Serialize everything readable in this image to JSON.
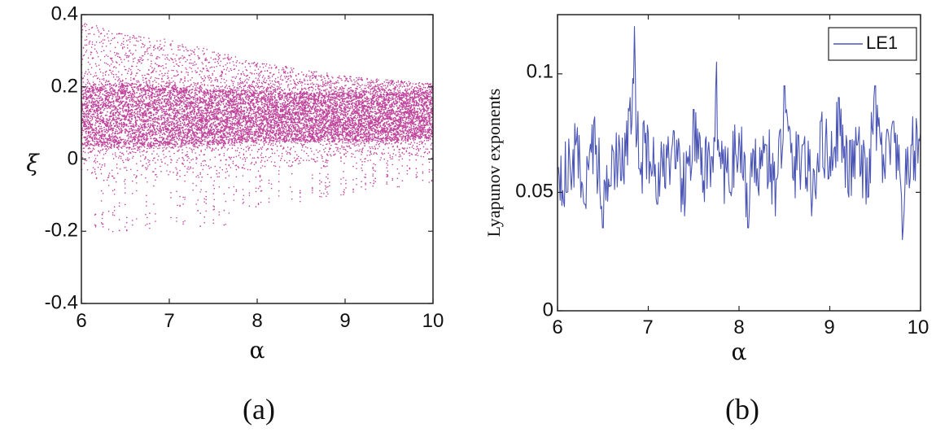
{
  "chart_data": [
    {
      "type": "scatter",
      "title": "",
      "panel_label": "(a)",
      "xlabel": "α",
      "ylabel": "ξ",
      "xlim": [
        6,
        10
      ],
      "ylim": [
        -0.4,
        0.4
      ],
      "xticks": [
        6,
        7,
        8,
        9,
        10
      ],
      "yticks": [
        -0.4,
        -0.2,
        0,
        0.2,
        0.4
      ],
      "xtick_labels": [
        "6",
        "7",
        "8",
        "9",
        "10"
      ],
      "ytick_labels": [
        "-0.4",
        "-0.2",
        "0",
        "0.2",
        "0.4"
      ],
      "grid": false,
      "color": "#c0449c",
      "description": "bifurcation-like point cloud, dense band roughly 0.0 to 0.2 across alpha 6 to 10",
      "envelope": {
        "alpha": [
          6.0,
          6.5,
          7.0,
          7.5,
          8.0,
          8.5,
          9.0,
          9.5,
          10.0
        ],
        "upper": [
          0.38,
          0.35,
          0.33,
          0.3,
          0.27,
          0.25,
          0.23,
          0.22,
          0.21
        ],
        "dense_upper": [
          0.2,
          0.21,
          0.2,
          0.19,
          0.19,
          0.18,
          0.18,
          0.18,
          0.18
        ],
        "dense_lower": [
          0.04,
          0.03,
          0.04,
          0.04,
          0.05,
          0.05,
          0.05,
          0.05,
          0.06
        ],
        "lower": [
          -0.2,
          -0.21,
          -0.18,
          -0.2,
          -0.14,
          -0.12,
          -0.1,
          -0.08,
          -0.07
        ]
      }
    },
    {
      "type": "line",
      "title": "",
      "panel_label": "(b)",
      "xlabel": "α",
      "ylabel": "Lyapunov exponents",
      "xlim": [
        6,
        10
      ],
      "ylim": [
        0,
        0.125
      ],
      "xticks": [
        6,
        7,
        8,
        9,
        10
      ],
      "yticks": [
        0,
        0.05,
        0.1
      ],
      "xtick_labels": [
        "6",
        "7",
        "8",
        "9",
        "10"
      ],
      "ytick_labels": [
        "0",
        "0.05",
        "0.1"
      ],
      "grid": false,
      "legend": "top-right",
      "series": [
        {
          "name": "LE1",
          "color": "#4a55b5",
          "x": [
            6.0,
            6.1,
            6.2,
            6.3,
            6.4,
            6.5,
            6.6,
            6.7,
            6.8,
            6.85,
            6.9,
            7.0,
            7.1,
            7.2,
            7.3,
            7.4,
            7.5,
            7.6,
            7.7,
            7.75,
            7.8,
            7.9,
            8.0,
            8.1,
            8.2,
            8.3,
            8.4,
            8.5,
            8.6,
            8.7,
            8.8,
            8.9,
            9.0,
            9.1,
            9.2,
            9.3,
            9.4,
            9.5,
            9.6,
            9.7,
            9.8,
            9.9,
            10.0
          ],
          "values": [
            0.06,
            0.05,
            0.07,
            0.045,
            0.08,
            0.035,
            0.07,
            0.055,
            0.09,
            0.12,
            0.06,
            0.075,
            0.045,
            0.07,
            0.06,
            0.04,
            0.085,
            0.05,
            0.065,
            0.105,
            0.06,
            0.05,
            0.075,
            0.035,
            0.06,
            0.07,
            0.04,
            0.095,
            0.055,
            0.07,
            0.04,
            0.08,
            0.065,
            0.09,
            0.05,
            0.07,
            0.045,
            0.095,
            0.06,
            0.08,
            0.03,
            0.07,
            0.075
          ]
        }
      ]
    }
  ]
}
